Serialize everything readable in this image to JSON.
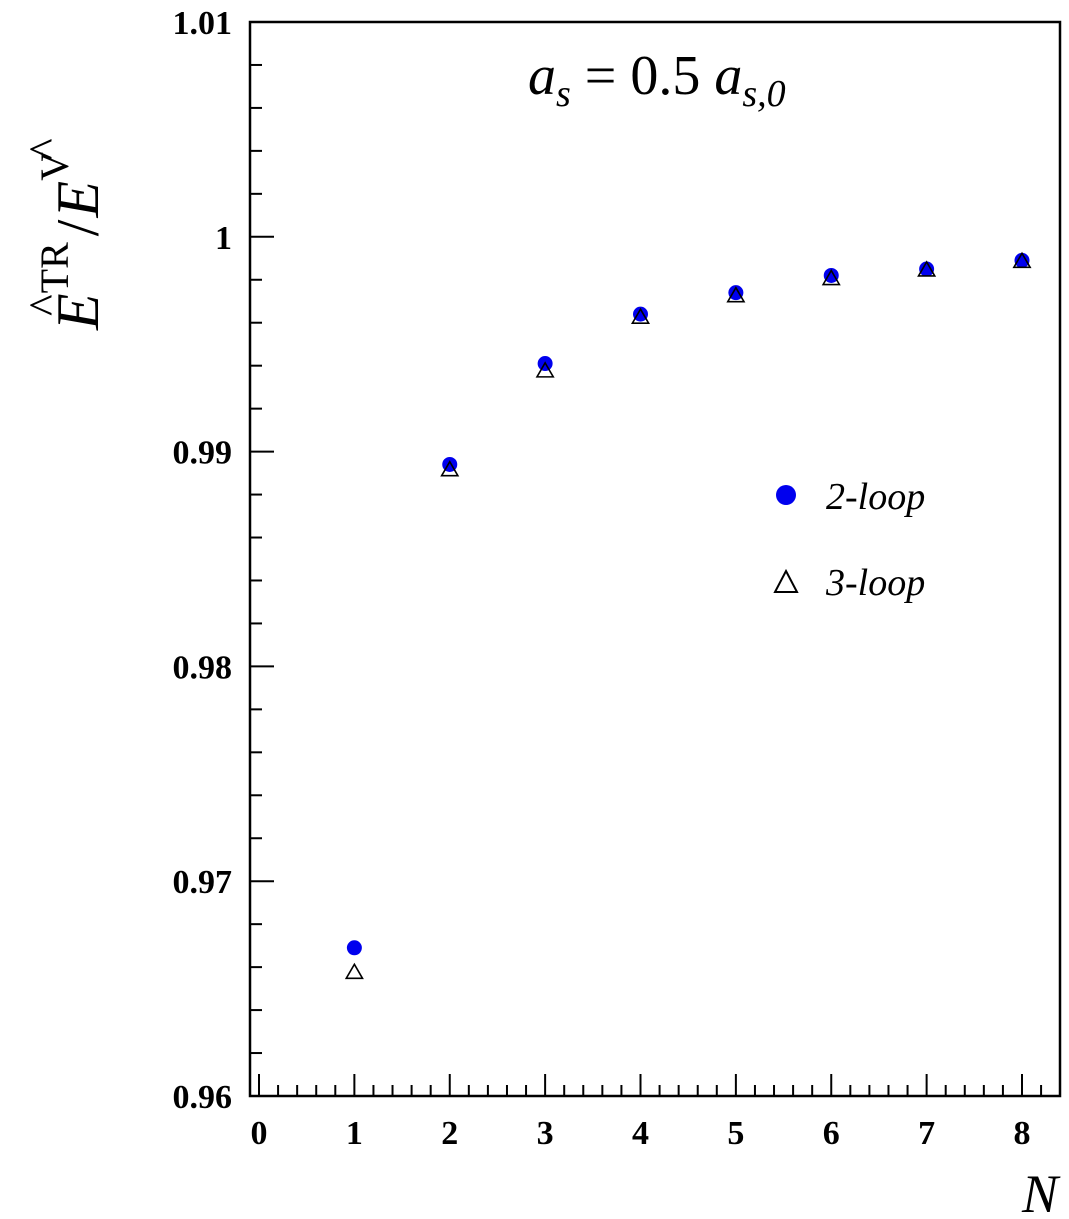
{
  "chart_data": {
    "type": "scatter",
    "title": "",
    "annotation": {
      "var": "a",
      "var_sub": "s",
      "eq": "= 0.5",
      "var2": "a",
      "var2_sub": "s,0"
    },
    "ylabel": {
      "base": "E",
      "base_sup": "TR",
      "slash": "/",
      "denom": "E",
      "denom_sup": "V",
      "hat": "^"
    },
    "xlabel": "N",
    "xlim": [
      0,
      8.4
    ],
    "ylim": [
      0.96,
      1.01
    ],
    "x_ticks": [
      "0",
      "1",
      "2",
      "3",
      "4",
      "5",
      "6",
      "7",
      "8"
    ],
    "x_tick_values": [
      0,
      1,
      2,
      3,
      4,
      5,
      6,
      7,
      8
    ],
    "y_ticks": [
      "0.96",
      "0.97",
      "0.98",
      "0.99",
      "1",
      "1.01"
    ],
    "y_tick_values": [
      0.96,
      0.97,
      0.98,
      0.99,
      1.0,
      1.01
    ],
    "grid": false,
    "legend_position": "right-middle",
    "series": [
      {
        "name": "2-loop",
        "marker": "filled-circle",
        "color": "#0000ee",
        "x": [
          1,
          2,
          3,
          4,
          5,
          6,
          7,
          8
        ],
        "y": [
          0.9669,
          0.9894,
          0.9941,
          0.9964,
          0.9974,
          0.9982,
          0.9985,
          0.9989
        ]
      },
      {
        "name": "3-loop",
        "marker": "open-triangle",
        "color": "#000000",
        "x": [
          1,
          2,
          3,
          4,
          5,
          6,
          7,
          8
        ],
        "y": [
          0.9657,
          0.9891,
          0.9937,
          0.9962,
          0.9972,
          0.998,
          0.9984,
          0.9988
        ]
      }
    ]
  }
}
